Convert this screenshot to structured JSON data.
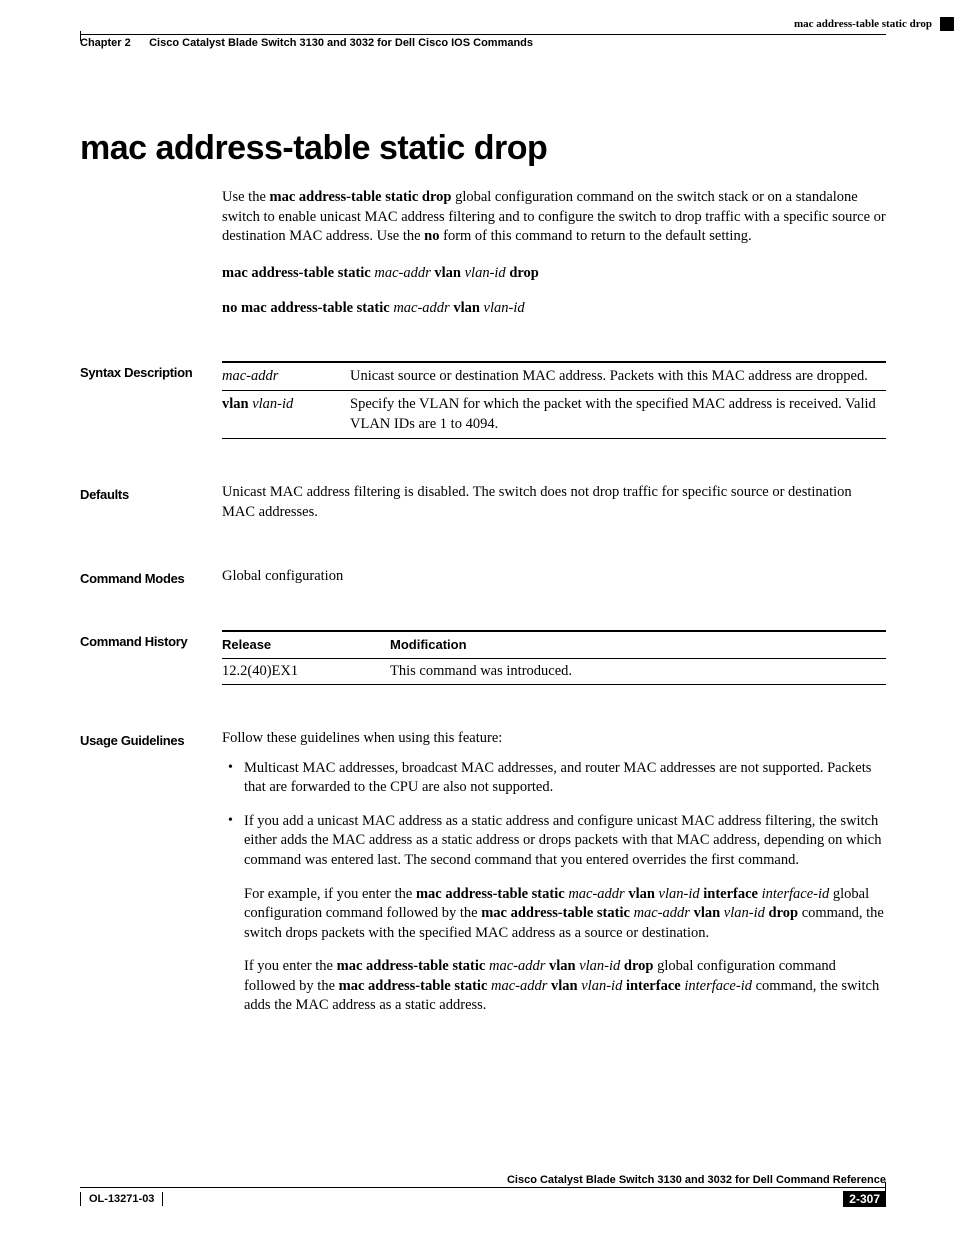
{
  "header": {
    "chapter": "Chapter 2",
    "chapter_title": "Cisco Catalyst Blade Switch 3130 and 3032 for Dell Cisco IOS Commands",
    "topic": "mac address-table static drop"
  },
  "title": "mac address-table static drop",
  "intro": {
    "p1_a": "Use the ",
    "p1_b": "mac address-table static drop",
    "p1_c": " global configuration command on the switch stack or on a standalone switch to enable unicast MAC address filtering and to configure the switch to drop traffic with a specific source or destination MAC address. Use the ",
    "p1_d": "no",
    "p1_e": " form of this command to return to the default setting."
  },
  "syntax_cmd": {
    "a": "mac address-table static ",
    "b": "mac-addr",
    "c": " vlan ",
    "d": "vlan-id",
    "e": " drop"
  },
  "syntax_no": {
    "a": "no mac address-table static ",
    "b": "mac-addr",
    "c": " vlan ",
    "d": "vlan-id"
  },
  "sections": {
    "syntax_desc": "Syntax Description",
    "defaults": "Defaults",
    "modes": "Command Modes",
    "history": "Command History",
    "usage": "Usage Guidelines"
  },
  "params": {
    "rows": [
      {
        "name": "mac-addr",
        "desc": "Unicast source or destination MAC address. Packets with this MAC address are dropped."
      },
      {
        "name_b": "vlan ",
        "name_i": "vlan-id",
        "desc": "Specify the VLAN for which the packet with the specified MAC address is received. Valid VLAN IDs are 1 to 4094."
      }
    ]
  },
  "defaults_text": "Unicast MAC address filtering is disabled. The switch does not drop traffic for specific source or destination MAC addresses.",
  "modes_text": "Global configuration",
  "history_table": {
    "h1": "Release",
    "h2": "Modification",
    "r1c1": "12.2(40)EX1",
    "r1c2": "This command was introduced."
  },
  "usage": {
    "lead": "Follow these guidelines when using this feature:",
    "b1": "Multicast MAC addresses, broadcast MAC addresses, and router MAC addresses are not supported. Packets that are forwarded to the CPU are also not supported.",
    "b2": "If you add a unicast MAC address as a static address and configure unicast MAC address filtering, the switch either adds the MAC address as a static address or drops packets with that MAC address, depending on which command was entered last. The second command that you entered overrides the first command.",
    "p2": {
      "a": "For example, if you enter the ",
      "b": "mac address-table static ",
      "c": "mac-addr",
      "d": " vlan ",
      "e": "vlan-id",
      "f": " interface ",
      "g": "interface-id",
      "h": " global configuration command followed by the ",
      "i": "mac address-table static ",
      "j": "mac-addr",
      "k": " vlan ",
      "l": "vlan-id",
      "m": " drop",
      "n": " command, the switch drops packets with the specified MAC address as a source or destination."
    },
    "p3": {
      "a": "If you enter the ",
      "b": "mac address-table static ",
      "c": "mac-addr",
      "d": " vlan ",
      "e": "vlan-id",
      "f": " drop",
      "g": " global configuration command followed by the ",
      "h": "mac address-table static ",
      "i": "mac-addr",
      "j": " vlan ",
      "k": "vlan-id",
      "l": " interface ",
      "m": "interface-id",
      "n": " command, the switch adds the MAC address as a static address."
    }
  },
  "footer": {
    "book_title": "Cisco Catalyst Blade Switch 3130 and 3032 for Dell Command Reference",
    "doc_id": "OL-13271-03",
    "page": "2-307"
  },
  "style": {
    "body_fontsize": 14.5,
    "heading_fontsize": 34,
    "label_fontsize": 13,
    "header_fontsize": 11,
    "font_serif": "Times New Roman",
    "font_sans": "Arial",
    "text_color": "#000000",
    "bg_color": "#ffffff"
  }
}
